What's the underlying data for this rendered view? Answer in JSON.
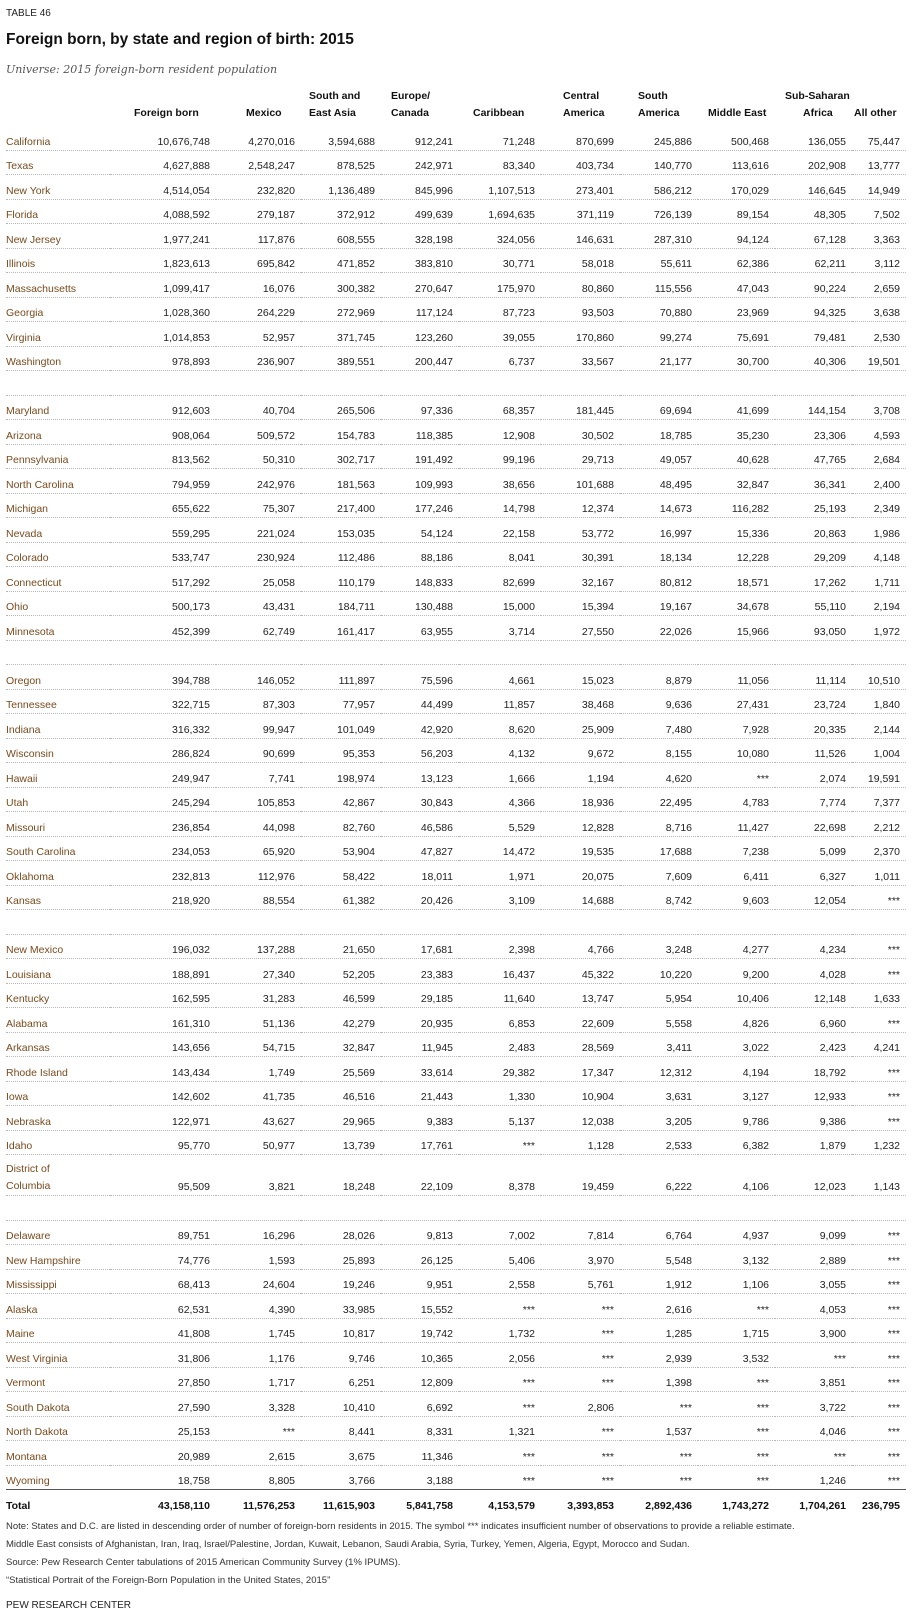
{
  "header": {
    "table_label": "TABLE 46",
    "title": "Foreign born, by state and region of birth: 2015",
    "subtitle": "Universe: 2015 foreign-born resident population"
  },
  "columns": {
    "foreign_born": "Foreign born",
    "mexico": "Mexico",
    "south_east_asia": [
      "South and",
      "East Asia"
    ],
    "europe_canada": [
      "Europe/",
      "Canada"
    ],
    "caribbean": "Caribbean",
    "central_america": [
      "Central",
      "America"
    ],
    "south_america": [
      "South",
      "America"
    ],
    "middle_east": "Middle East",
    "sub_saharan_africa": [
      "Sub-Saharan",
      "Africa"
    ],
    "all_other": "All other"
  },
  "groups": [
    [
      [
        "California",
        "10,676,748",
        "4,270,016",
        "3,594,688",
        "912,241",
        "71,248",
        "870,699",
        "245,886",
        "500,468",
        "136,055",
        "75,447"
      ],
      [
        "Texas",
        "4,627,888",
        "2,548,247",
        "878,525",
        "242,971",
        "83,340",
        "403,734",
        "140,770",
        "113,616",
        "202,908",
        "13,777"
      ],
      [
        "New York",
        "4,514,054",
        "232,820",
        "1,136,489",
        "845,996",
        "1,107,513",
        "273,401",
        "586,212",
        "170,029",
        "146,645",
        "14,949"
      ],
      [
        "Florida",
        "4,088,592",
        "279,187",
        "372,912",
        "499,639",
        "1,694,635",
        "371,119",
        "726,139",
        "89,154",
        "48,305",
        "7,502"
      ],
      [
        "New Jersey",
        "1,977,241",
        "117,876",
        "608,555",
        "328,198",
        "324,056",
        "146,631",
        "287,310",
        "94,124",
        "67,128",
        "3,363"
      ],
      [
        "Illinois",
        "1,823,613",
        "695,842",
        "471,852",
        "383,810",
        "30,771",
        "58,018",
        "55,611",
        "62,386",
        "62,211",
        "3,112"
      ],
      [
        "Massachusetts",
        "1,099,417",
        "16,076",
        "300,382",
        "270,647",
        "175,970",
        "80,860",
        "115,556",
        "47,043",
        "90,224",
        "2,659"
      ],
      [
        "Georgia",
        "1,028,360",
        "264,229",
        "272,969",
        "117,124",
        "87,723",
        "93,503",
        "70,880",
        "23,969",
        "94,325",
        "3,638"
      ],
      [
        "Virginia",
        "1,014,853",
        "52,957",
        "371,745",
        "123,260",
        "39,055",
        "170,860",
        "99,274",
        "75,691",
        "79,481",
        "2,530"
      ],
      [
        "Washington",
        "978,893",
        "236,907",
        "389,551",
        "200,447",
        "6,737",
        "33,567",
        "21,177",
        "30,700",
        "40,306",
        "19,501"
      ]
    ],
    [
      [
        "Maryland",
        "912,603",
        "40,704",
        "265,506",
        "97,336",
        "68,357",
        "181,445",
        "69,694",
        "41,699",
        "144,154",
        "3,708"
      ],
      [
        "Arizona",
        "908,064",
        "509,572",
        "154,783",
        "118,385",
        "12,908",
        "30,502",
        "18,785",
        "35,230",
        "23,306",
        "4,593"
      ],
      [
        "Pennsylvania",
        "813,562",
        "50,310",
        "302,717",
        "191,492",
        "99,196",
        "29,713",
        "49,057",
        "40,628",
        "47,765",
        "2,684"
      ],
      [
        "North Carolina",
        "794,959",
        "242,976",
        "181,563",
        "109,993",
        "38,656",
        "101,688",
        "48,495",
        "32,847",
        "36,341",
        "2,400"
      ],
      [
        "Michigan",
        "655,622",
        "75,307",
        "217,400",
        "177,246",
        "14,798",
        "12,374",
        "14,673",
        "116,282",
        "25,193",
        "2,349"
      ],
      [
        "Nevada",
        "559,295",
        "221,024",
        "153,035",
        "54,124",
        "22,158",
        "53,772",
        "16,997",
        "15,336",
        "20,863",
        "1,986"
      ],
      [
        "Colorado",
        "533,747",
        "230,924",
        "112,486",
        "88,186",
        "8,041",
        "30,391",
        "18,134",
        "12,228",
        "29,209",
        "4,148"
      ],
      [
        "Connecticut",
        "517,292",
        "25,058",
        "110,179",
        "148,833",
        "82,699",
        "32,167",
        "80,812",
        "18,571",
        "17,262",
        "1,711"
      ],
      [
        "Ohio",
        "500,173",
        "43,431",
        "184,711",
        "130,488",
        "15,000",
        "15,394",
        "19,167",
        "34,678",
        "55,110",
        "2,194"
      ],
      [
        "Minnesota",
        "452,399",
        "62,749",
        "161,417",
        "63,955",
        "3,714",
        "27,550",
        "22,026",
        "15,966",
        "93,050",
        "1,972"
      ]
    ],
    [
      [
        "Oregon",
        "394,788",
        "146,052",
        "111,897",
        "75,596",
        "4,661",
        "15,023",
        "8,879",
        "11,056",
        "11,114",
        "10,510"
      ],
      [
        "Tennessee",
        "322,715",
        "87,303",
        "77,957",
        "44,499",
        "11,857",
        "38,468",
        "9,636",
        "27,431",
        "23,724",
        "1,840"
      ],
      [
        "Indiana",
        "316,332",
        "99,947",
        "101,049",
        "42,920",
        "8,620",
        "25,909",
        "7,480",
        "7,928",
        "20,335",
        "2,144"
      ],
      [
        "Wisconsin",
        "286,824",
        "90,699",
        "95,353",
        "56,203",
        "4,132",
        "9,672",
        "8,155",
        "10,080",
        "11,526",
        "1,004"
      ],
      [
        "Hawaii",
        "249,947",
        "7,741",
        "198,974",
        "13,123",
        "1,666",
        "1,194",
        "4,620",
        "***",
        "2,074",
        "19,591"
      ],
      [
        "Utah",
        "245,294",
        "105,853",
        "42,867",
        "30,843",
        "4,366",
        "18,936",
        "22,495",
        "4,783",
        "7,774",
        "7,377"
      ],
      [
        "Missouri",
        "236,854",
        "44,098",
        "82,760",
        "46,586",
        "5,529",
        "12,828",
        "8,716",
        "11,427",
        "22,698",
        "2,212"
      ],
      [
        "South Carolina",
        "234,053",
        "65,920",
        "53,904",
        "47,827",
        "14,472",
        "19,535",
        "17,688",
        "7,238",
        "5,099",
        "2,370"
      ],
      [
        "Oklahoma",
        "232,813",
        "112,976",
        "58,422",
        "18,011",
        "1,971",
        "20,075",
        "7,609",
        "6,411",
        "6,327",
        "1,011"
      ],
      [
        "Kansas",
        "218,920",
        "88,554",
        "61,382",
        "20,426",
        "3,109",
        "14,688",
        "8,742",
        "9,603",
        "12,054",
        "***"
      ]
    ],
    [
      [
        "New Mexico",
        "196,032",
        "137,288",
        "21,650",
        "17,681",
        "2,398",
        "4,766",
        "3,248",
        "4,277",
        "4,234",
        "***"
      ],
      [
        "Louisiana",
        "188,891",
        "27,340",
        "52,205",
        "23,383",
        "16,437",
        "45,322",
        "10,220",
        "9,200",
        "4,028",
        "***"
      ],
      [
        "Kentucky",
        "162,595",
        "31,283",
        "46,599",
        "29,185",
        "11,640",
        "13,747",
        "5,954",
        "10,406",
        "12,148",
        "1,633"
      ],
      [
        "Alabama",
        "161,310",
        "51,136",
        "42,279",
        "20,935",
        "6,853",
        "22,609",
        "5,558",
        "4,826",
        "6,960",
        "***"
      ],
      [
        "Arkansas",
        "143,656",
        "54,715",
        "32,847",
        "11,945",
        "2,483",
        "28,569",
        "3,411",
        "3,022",
        "2,423",
        "4,241"
      ],
      [
        "Rhode Island",
        "143,434",
        "1,749",
        "25,569",
        "33,614",
        "29,382",
        "17,347",
        "12,312",
        "4,194",
        "18,792",
        "***"
      ],
      [
        "Iowa",
        "142,602",
        "41,735",
        "46,516",
        "21,443",
        "1,330",
        "10,904",
        "3,631",
        "3,127",
        "12,933",
        "***"
      ],
      [
        "Nebraska",
        "122,971",
        "43,627",
        "29,965",
        "9,383",
        "5,137",
        "12,038",
        "3,205",
        "9,786",
        "9,386",
        "***"
      ],
      [
        "Idaho",
        "95,770",
        "50,977",
        "13,739",
        "17,761",
        "***",
        "1,128",
        "2,533",
        "6,382",
        "1,879",
        "1,232"
      ],
      [
        "District of Columbia",
        "95,509",
        "3,821",
        "18,248",
        "22,109",
        "8,378",
        "19,459",
        "6,222",
        "4,106",
        "12,023",
        "1,143"
      ]
    ],
    [
      [
        "Delaware",
        "89,751",
        "16,296",
        "28,026",
        "9,813",
        "7,002",
        "7,814",
        "6,764",
        "4,937",
        "9,099",
        "***"
      ],
      [
        "New Hampshire",
        "74,776",
        "1,593",
        "25,893",
        "26,125",
        "5,406",
        "3,970",
        "5,548",
        "3,132",
        "2,889",
        "***"
      ],
      [
        "Mississippi",
        "68,413",
        "24,604",
        "19,246",
        "9,951",
        "2,558",
        "5,761",
        "1,912",
        "1,106",
        "3,055",
        "***"
      ],
      [
        "Alaska",
        "62,531",
        "4,390",
        "33,985",
        "15,552",
        "***",
        "***",
        "2,616",
        "***",
        "4,053",
        "***"
      ],
      [
        "Maine",
        "41,808",
        "1,745",
        "10,817",
        "19,742",
        "1,732",
        "***",
        "1,285",
        "1,715",
        "3,900",
        "***"
      ],
      [
        "West Virginia",
        "31,806",
        "1,176",
        "9,746",
        "10,365",
        "2,056",
        "***",
        "2,939",
        "3,532",
        "***",
        "***"
      ],
      [
        "Vermont",
        "27,850",
        "1,717",
        "6,251",
        "12,809",
        "***",
        "***",
        "1,398",
        "***",
        "3,851",
        "***"
      ],
      [
        "South Dakota",
        "27,590",
        "3,328",
        "10,410",
        "6,692",
        "***",
        "2,806",
        "***",
        "***",
        "3,722",
        "***"
      ],
      [
        "North Dakota",
        "25,153",
        "***",
        "8,441",
        "8,331",
        "1,321",
        "***",
        "1,537",
        "***",
        "4,046",
        "***"
      ],
      [
        "Montana",
        "20,989",
        "2,615",
        "3,675",
        "11,346",
        "***",
        "***",
        "***",
        "***",
        "***",
        "***"
      ],
      [
        "Wyoming",
        "18,758",
        "8,805",
        "3,766",
        "3,188",
        "***",
        "***",
        "***",
        "***",
        "1,246",
        "***"
      ]
    ]
  ],
  "total": [
    "Total",
    "43,158,110",
    "11,576,253",
    "11,615,903",
    "5,841,758",
    "4,153,579",
    "3,393,853",
    "2,892,436",
    "1,743,272",
    "1,704,261",
    "236,795"
  ],
  "notes": {
    "note_line1": "Note: States and D.C. are listed in descending order of number of foreign-born residents in 2015. The symbol *** indicates insufficient number of observations to provide a reliable estimate.",
    "note_line2": "Middle East consists of Afghanistan, Iran, Iraq, Israel/Palestine, Jordan, Kuwait, Lebanon, Saudi Arabia, Syria, Turkey, Yemen, Algeria, Egypt, Morocco and Sudan.",
    "source": "Source: Pew Research Center tabulations of 2015 American Community Survey (1% IPUMS).",
    "report": "“Statistical Portrait of the Foreign-Born Population in the United States, 2015”"
  },
  "footer": {
    "org": "PEW RESEARCH CENTER"
  }
}
